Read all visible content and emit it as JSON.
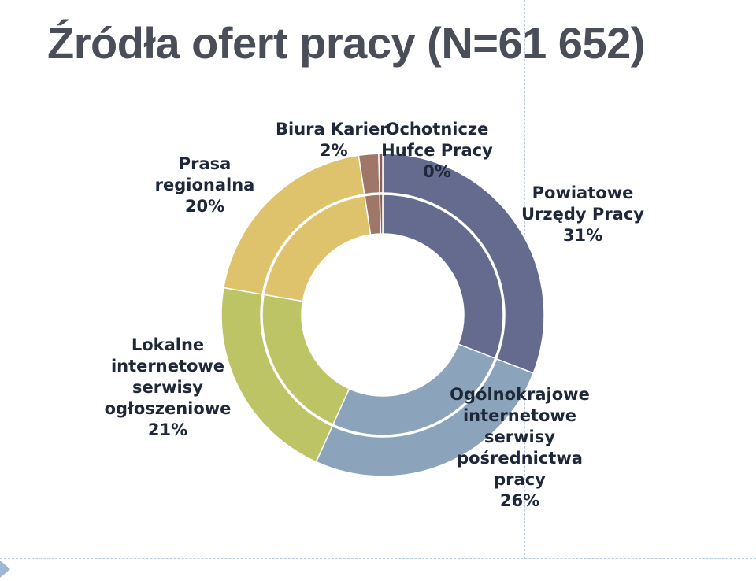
{
  "title": "Źródła ofert pracy (N=61 652)",
  "chart_data": {
    "type": "pie",
    "variant": "double-ring-donut",
    "categories": [
      "Powiatowe Urzędy Pracy",
      "Ogólnokrajowe internetowe serwisy pośrednictwa pracy",
      "Lokalne internetowe serwisy ogłoszeniowe",
      "Prasa regionalna",
      "Biura Karier",
      "Ochotnicze Hufce Pracy"
    ],
    "values": [
      31,
      26,
      21,
      20,
      2,
      0
    ],
    "unit": "%",
    "colors": [
      "#646b8f",
      "#8ba4bc",
      "#bdc466",
      "#dfc26c",
      "#9e7768",
      "#8e5f55"
    ],
    "legend": "none",
    "labels": [
      {
        "lines": [
          "Powiatowe",
          "Urzędy Pracy",
          "31%"
        ]
      },
      {
        "lines": [
          "Ogólnokrajowe",
          "internetowe",
          "serwisy",
          "pośrednictwa",
          "pracy",
          "26%"
        ]
      },
      {
        "lines": [
          "Lokalne",
          "internetowe",
          "serwisy",
          "ogłoszeniowe",
          "21%"
        ]
      },
      {
        "lines": [
          "Prasa",
          "regionalna",
          "20%"
        ]
      },
      {
        "lines": [
          "Biura Karier",
          "2%"
        ]
      },
      {
        "lines": [
          "Ochotnicze",
          "Hufce Pracy",
          "0%"
        ]
      }
    ]
  }
}
